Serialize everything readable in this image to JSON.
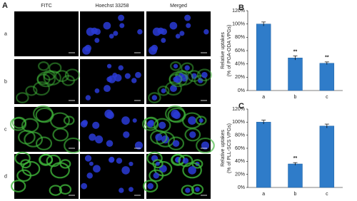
{
  "panel_a": {
    "label": "A",
    "columns": [
      "FITC",
      "Hoechst 33258",
      "Merged"
    ],
    "rows": [
      "a",
      "b",
      "c",
      "d"
    ]
  },
  "chart_data": [
    {
      "type": "bar",
      "panel": "B",
      "ylabel": [
        "Relative uptakes",
        "(% of PGA-ODA VPGs)"
      ],
      "categories": [
        "a",
        "b",
        "c"
      ],
      "values": [
        100,
        49,
        41
      ],
      "errors": [
        3,
        3,
        2
      ],
      "significance": [
        null,
        "**",
        "**"
      ],
      "color": "#2f7cc9",
      "ylim": [
        0,
        120
      ],
      "yticks": [
        {
          "value": 0,
          "label": "0%"
        },
        {
          "value": 20,
          "label": "20%"
        },
        {
          "value": 40,
          "label": "40%"
        },
        {
          "value": 60,
          "label": "60%"
        },
        {
          "value": 80,
          "label": "80%"
        },
        {
          "value": 100,
          "label": "100%"
        },
        {
          "value": 120,
          "label": "120%"
        }
      ]
    },
    {
      "type": "bar",
      "panel": "C",
      "ylabel": [
        "Relative uptakes",
        "(% of PLL-SCS VPGs)"
      ],
      "categories": [
        "a",
        "b",
        "c"
      ],
      "values": [
        100,
        36,
        94
      ],
      "errors": [
        3,
        2,
        3
      ],
      "significance": [
        null,
        "**",
        null
      ],
      "color": "#2f7cc9",
      "ylim": [
        0,
        120
      ],
      "yticks": [
        {
          "value": 0,
          "label": "0%"
        },
        {
          "value": 20,
          "label": "20%"
        },
        {
          "value": 40,
          "label": "40%"
        },
        {
          "value": 60,
          "label": "60%"
        },
        {
          "value": 80,
          "label": "80%"
        },
        {
          "value": 100,
          "label": "100%"
        },
        {
          "value": 120,
          "label": "120%"
        }
      ]
    }
  ]
}
